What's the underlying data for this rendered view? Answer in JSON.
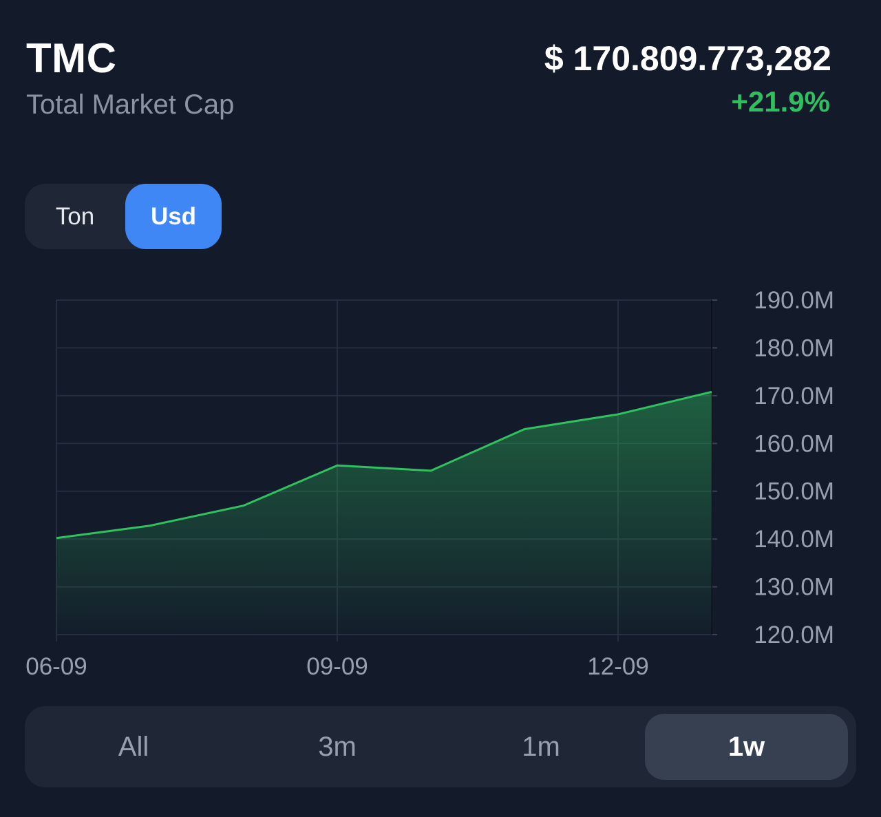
{
  "header": {
    "ticker": "TMC",
    "subtitle": "Total Market Cap",
    "price": "$ 170.809.773,282",
    "change": "+21.9%"
  },
  "unit_toggle": {
    "options": [
      "Ton",
      "Usd"
    ],
    "selected": "Usd"
  },
  "range_selector": {
    "options": [
      "All",
      "3m",
      "1m",
      "1w"
    ],
    "selected": "1w"
  },
  "colors": {
    "background": "#131a2a",
    "accent_blue": "#3f87f5",
    "positive_green": "#2fbf5e",
    "chart_line": "#2fc25f"
  },
  "chart_data": {
    "type": "area",
    "x": [
      "06-09",
      "07-09",
      "08-09",
      "09-09",
      "10-09",
      "11-09",
      "12-09",
      "13-09"
    ],
    "x_tick_labels": [
      "06-09",
      "09-09",
      "12-09"
    ],
    "values": [
      140.2,
      142.8,
      147.0,
      155.4,
      154.3,
      163.0,
      166.1,
      170.8
    ],
    "y_tick_labels": [
      "190.0M",
      "180.0M",
      "170.0M",
      "160.0M",
      "150.0M",
      "140.0M",
      "130.0M",
      "120.0M"
    ],
    "ylim": [
      120,
      190
    ],
    "y_axis_position": "right",
    "grid": true
  }
}
